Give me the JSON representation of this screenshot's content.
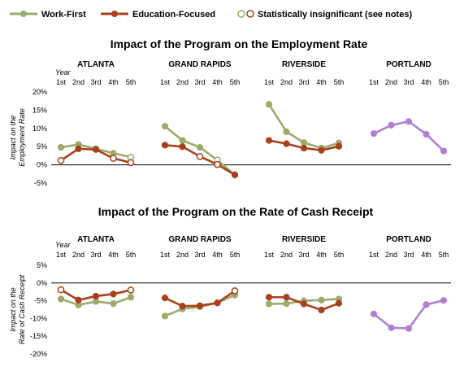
{
  "legend": {
    "items": [
      {
        "label": "Work-First",
        "kind": "line",
        "color": "#9aab6c"
      },
      {
        "label": "Education-Focused",
        "kind": "line",
        "color": "#a8401c"
      },
      {
        "label": "Statistically insignificant (see notes)",
        "kind": "hollow"
      }
    ]
  },
  "colors": {
    "work_first": "#9aab6c",
    "education_focused": "#a8401c",
    "portland": "#b07fd4",
    "axis": "#000000",
    "grid_text": "#000000"
  },
  "chart_data": [
    {
      "type": "line",
      "title": "Impact of the Program on the Employment Rate",
      "ylabel": "Impact on the Employment Rate",
      "xlabel": "Year",
      "ylim": [
        -5,
        20
      ],
      "ytick_labels": [
        "20%",
        "15%",
        "10%",
        "5%",
        "0%",
        "-5%"
      ],
      "ytick_values": [
        20,
        15,
        10,
        5,
        0,
        -5
      ],
      "x_categories": [
        "1st",
        "2nd",
        "3rd",
        "4th",
        "5th"
      ],
      "panels": [
        {
          "site": "ATLANTA",
          "series": [
            {
              "name": "Work-First",
              "values": [
                4.8,
                5.6,
                4.4,
                3.2,
                2.1
              ],
              "insignificant": [
                false,
                false,
                false,
                false,
                true
              ]
            },
            {
              "name": "Education-Focused",
              "values": [
                1.2,
                4.4,
                4.2,
                1.8,
                0.6
              ],
              "insignificant": [
                true,
                false,
                false,
                true,
                true
              ]
            }
          ]
        },
        {
          "site": "GRAND RAPIDS",
          "series": [
            {
              "name": "Work-First",
              "values": [
                10.6,
                6.7,
                4.8,
                1.3,
                -2.8
              ],
              "insignificant": [
                false,
                false,
                false,
                true,
                false
              ]
            },
            {
              "name": "Education-Focused",
              "values": [
                5.4,
                5.0,
                2.3,
                0.1,
                -2.7
              ],
              "insignificant": [
                false,
                false,
                true,
                true,
                false
              ]
            }
          ]
        },
        {
          "site": "RIVERSIDE",
          "series": [
            {
              "name": "Work-First",
              "values": [
                16.6,
                9.1,
                6.1,
                4.6,
                6.0
              ],
              "insignificant": [
                false,
                false,
                false,
                false,
                false
              ]
            },
            {
              "name": "Education-Focused",
              "values": [
                6.7,
                5.8,
                4.6,
                4.0,
                5.1
              ],
              "insignificant": [
                false,
                false,
                false,
                false,
                false
              ]
            }
          ]
        },
        {
          "site": "PORTLAND",
          "series": [
            {
              "name": "",
              "values": [
                8.6,
                10.9,
                11.9,
                8.4,
                3.8
              ],
              "insignificant": [
                false,
                false,
                false,
                false,
                false
              ]
            }
          ]
        }
      ]
    },
    {
      "type": "line",
      "title": "Impact of the Program on the Rate of Cash Receipt",
      "ylabel": "Impact on the Rate of Cash Receipt",
      "xlabel": "Year",
      "ylim": [
        -20,
        5
      ],
      "ytick_labels": [
        "5%",
        "0%",
        "-5%",
        "-10%",
        "-15%",
        "-20%"
      ],
      "ytick_values": [
        5,
        0,
        -5,
        -10,
        -15,
        -20
      ],
      "x_categories": [
        "1st",
        "2nd",
        "3rd",
        "4th",
        "5th"
      ],
      "panels": [
        {
          "site": "ATLANTA",
          "series": [
            {
              "name": "Work-First",
              "values": [
                -4.5,
                -6.2,
                -5.2,
                -5.8,
                -4.0
              ],
              "insignificant": [
                false,
                false,
                false,
                false,
                false
              ]
            },
            {
              "name": "Education-Focused",
              "values": [
                -1.9,
                -4.8,
                -3.7,
                -3.1,
                -2.0
              ],
              "insignificant": [
                true,
                false,
                false,
                false,
                true
              ]
            }
          ]
        },
        {
          "site": "GRAND RAPIDS",
          "series": [
            {
              "name": "Work-First",
              "values": [
                -9.3,
                -7.3,
                -6.7,
                -5.6,
                -3.4
              ],
              "insignificant": [
                false,
                false,
                false,
                false,
                false
              ]
            },
            {
              "name": "Education-Focused",
              "values": [
                -4.2,
                -6.5,
                -6.4,
                -5.6,
                -2.2
              ],
              "insignificant": [
                false,
                false,
                false,
                false,
                true
              ]
            }
          ]
        },
        {
          "site": "RIVERSIDE",
          "series": [
            {
              "name": "Work-First",
              "values": [
                -5.9,
                -5.8,
                -5.0,
                -4.8,
                -4.5
              ],
              "insignificant": [
                false,
                false,
                false,
                false,
                false
              ]
            },
            {
              "name": "Education-Focused",
              "values": [
                -4.0,
                -4.0,
                -5.9,
                -7.6,
                -5.7
              ],
              "insignificant": [
                false,
                false,
                false,
                false,
                false
              ]
            }
          ]
        },
        {
          "site": "PORTLAND",
          "series": [
            {
              "name": "",
              "values": [
                -8.7,
                -12.6,
                -12.8,
                -6.1,
                -4.9
              ],
              "insignificant": [
                false,
                false,
                false,
                false,
                false
              ]
            }
          ]
        }
      ]
    }
  ]
}
